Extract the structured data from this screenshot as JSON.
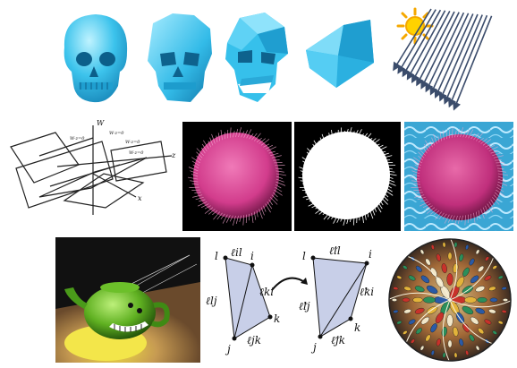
{
  "row1": {
    "skulls": [
      "high-poly skull",
      "medium-poly skull",
      "low-poly skull",
      "coarse skull"
    ],
    "sun_icon": "sun-icon",
    "rays": "parallel-light-rays"
  },
  "row2": {
    "planes_diagram": {
      "axes": {
        "w": "W",
        "z": "z",
        "x": "x"
      },
      "plane_labels": [
        "W-z=0",
        "W-z=0",
        "W-z=0",
        "W-z=0"
      ]
    },
    "fur_sphere_color": "#d23c8c",
    "pool_color": "#4fb3d9"
  },
  "row3": {
    "teapot_color": "#5fb021",
    "spotlight_color": "#f0e040",
    "mesh_left": {
      "vertices": [
        "l",
        "i",
        "j",
        "k"
      ],
      "edges": [
        "ℓil",
        "ℓki",
        "ℓlj",
        "ℓjk"
      ]
    },
    "mesh_right": {
      "vertices": [
        "l",
        "i",
        "j",
        "k"
      ],
      "edges": [
        "ℓ̃il",
        "ℓ̃ki",
        "ℓ̃lj",
        "ℓ̃jk"
      ]
    },
    "escher_disk": "hyperbolic-tiling"
  }
}
